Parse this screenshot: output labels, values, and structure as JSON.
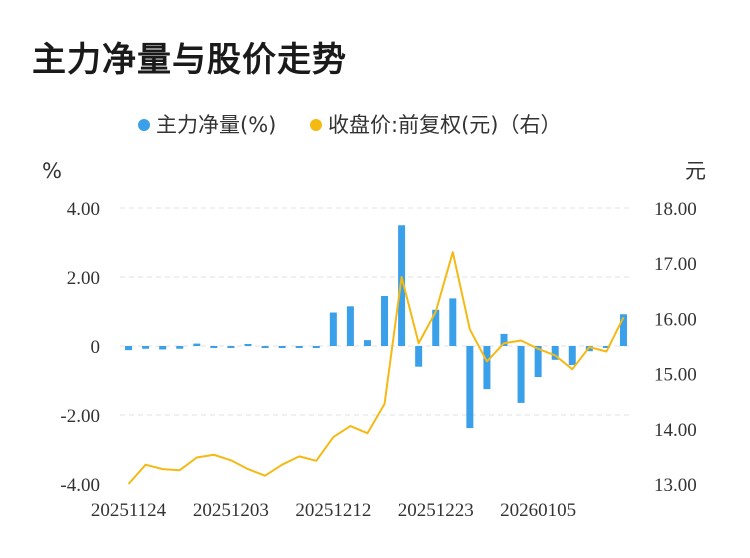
{
  "title": "主力净量与股价走势",
  "legend": {
    "series1": "主力净量(%)",
    "series2": "收盘价:前复权(元)（右）"
  },
  "units": {
    "left": "%",
    "right": "元"
  },
  "colors": {
    "bar": "#3aa0ea",
    "line": "#f5b914",
    "grid": "#e0e0e0"
  },
  "chart_data": {
    "type": "bar+line",
    "x_ticks": [
      "20251124",
      "20251203",
      "20251212",
      "20251223",
      "20260105"
    ],
    "y_left_ticks": [
      "4.00",
      "2.00",
      "0",
      "-2.00",
      "-4.00"
    ],
    "y_right_ticks": [
      "18.00",
      "17.00",
      "16.00",
      "15.00",
      "14.00",
      "13.00"
    ],
    "ylim_left": [
      -4,
      4
    ],
    "ylim_right": [
      13,
      18
    ],
    "grid": true,
    "legend_position": "top",
    "series": [
      {
        "name": "主力净量(%)",
        "type": "bar",
        "axis": "left",
        "values": [
          -0.12,
          -0.08,
          -0.1,
          -0.08,
          0.07,
          -0.02,
          -0.02,
          0.02,
          -0.02,
          -0.02,
          -0.02,
          -0.02,
          0.97,
          1.15,
          0.17,
          1.45,
          3.5,
          -0.6,
          1.05,
          1.38,
          -2.38,
          -1.25,
          0.35,
          -1.65,
          -0.9,
          -0.4,
          -0.55,
          -0.15,
          -0.05,
          0.92
        ]
      },
      {
        "name": "收盘价:前复权(元)（右）",
        "type": "line",
        "axis": "right",
        "values": [
          13.0,
          13.35,
          13.27,
          13.25,
          13.48,
          13.53,
          13.43,
          13.27,
          13.15,
          13.35,
          13.5,
          13.42,
          13.85,
          14.05,
          13.92,
          14.45,
          16.75,
          15.55,
          16.12,
          17.2,
          15.8,
          15.22,
          15.55,
          15.6,
          15.45,
          15.33,
          15.08,
          15.48,
          15.4,
          16.02
        ]
      }
    ]
  }
}
